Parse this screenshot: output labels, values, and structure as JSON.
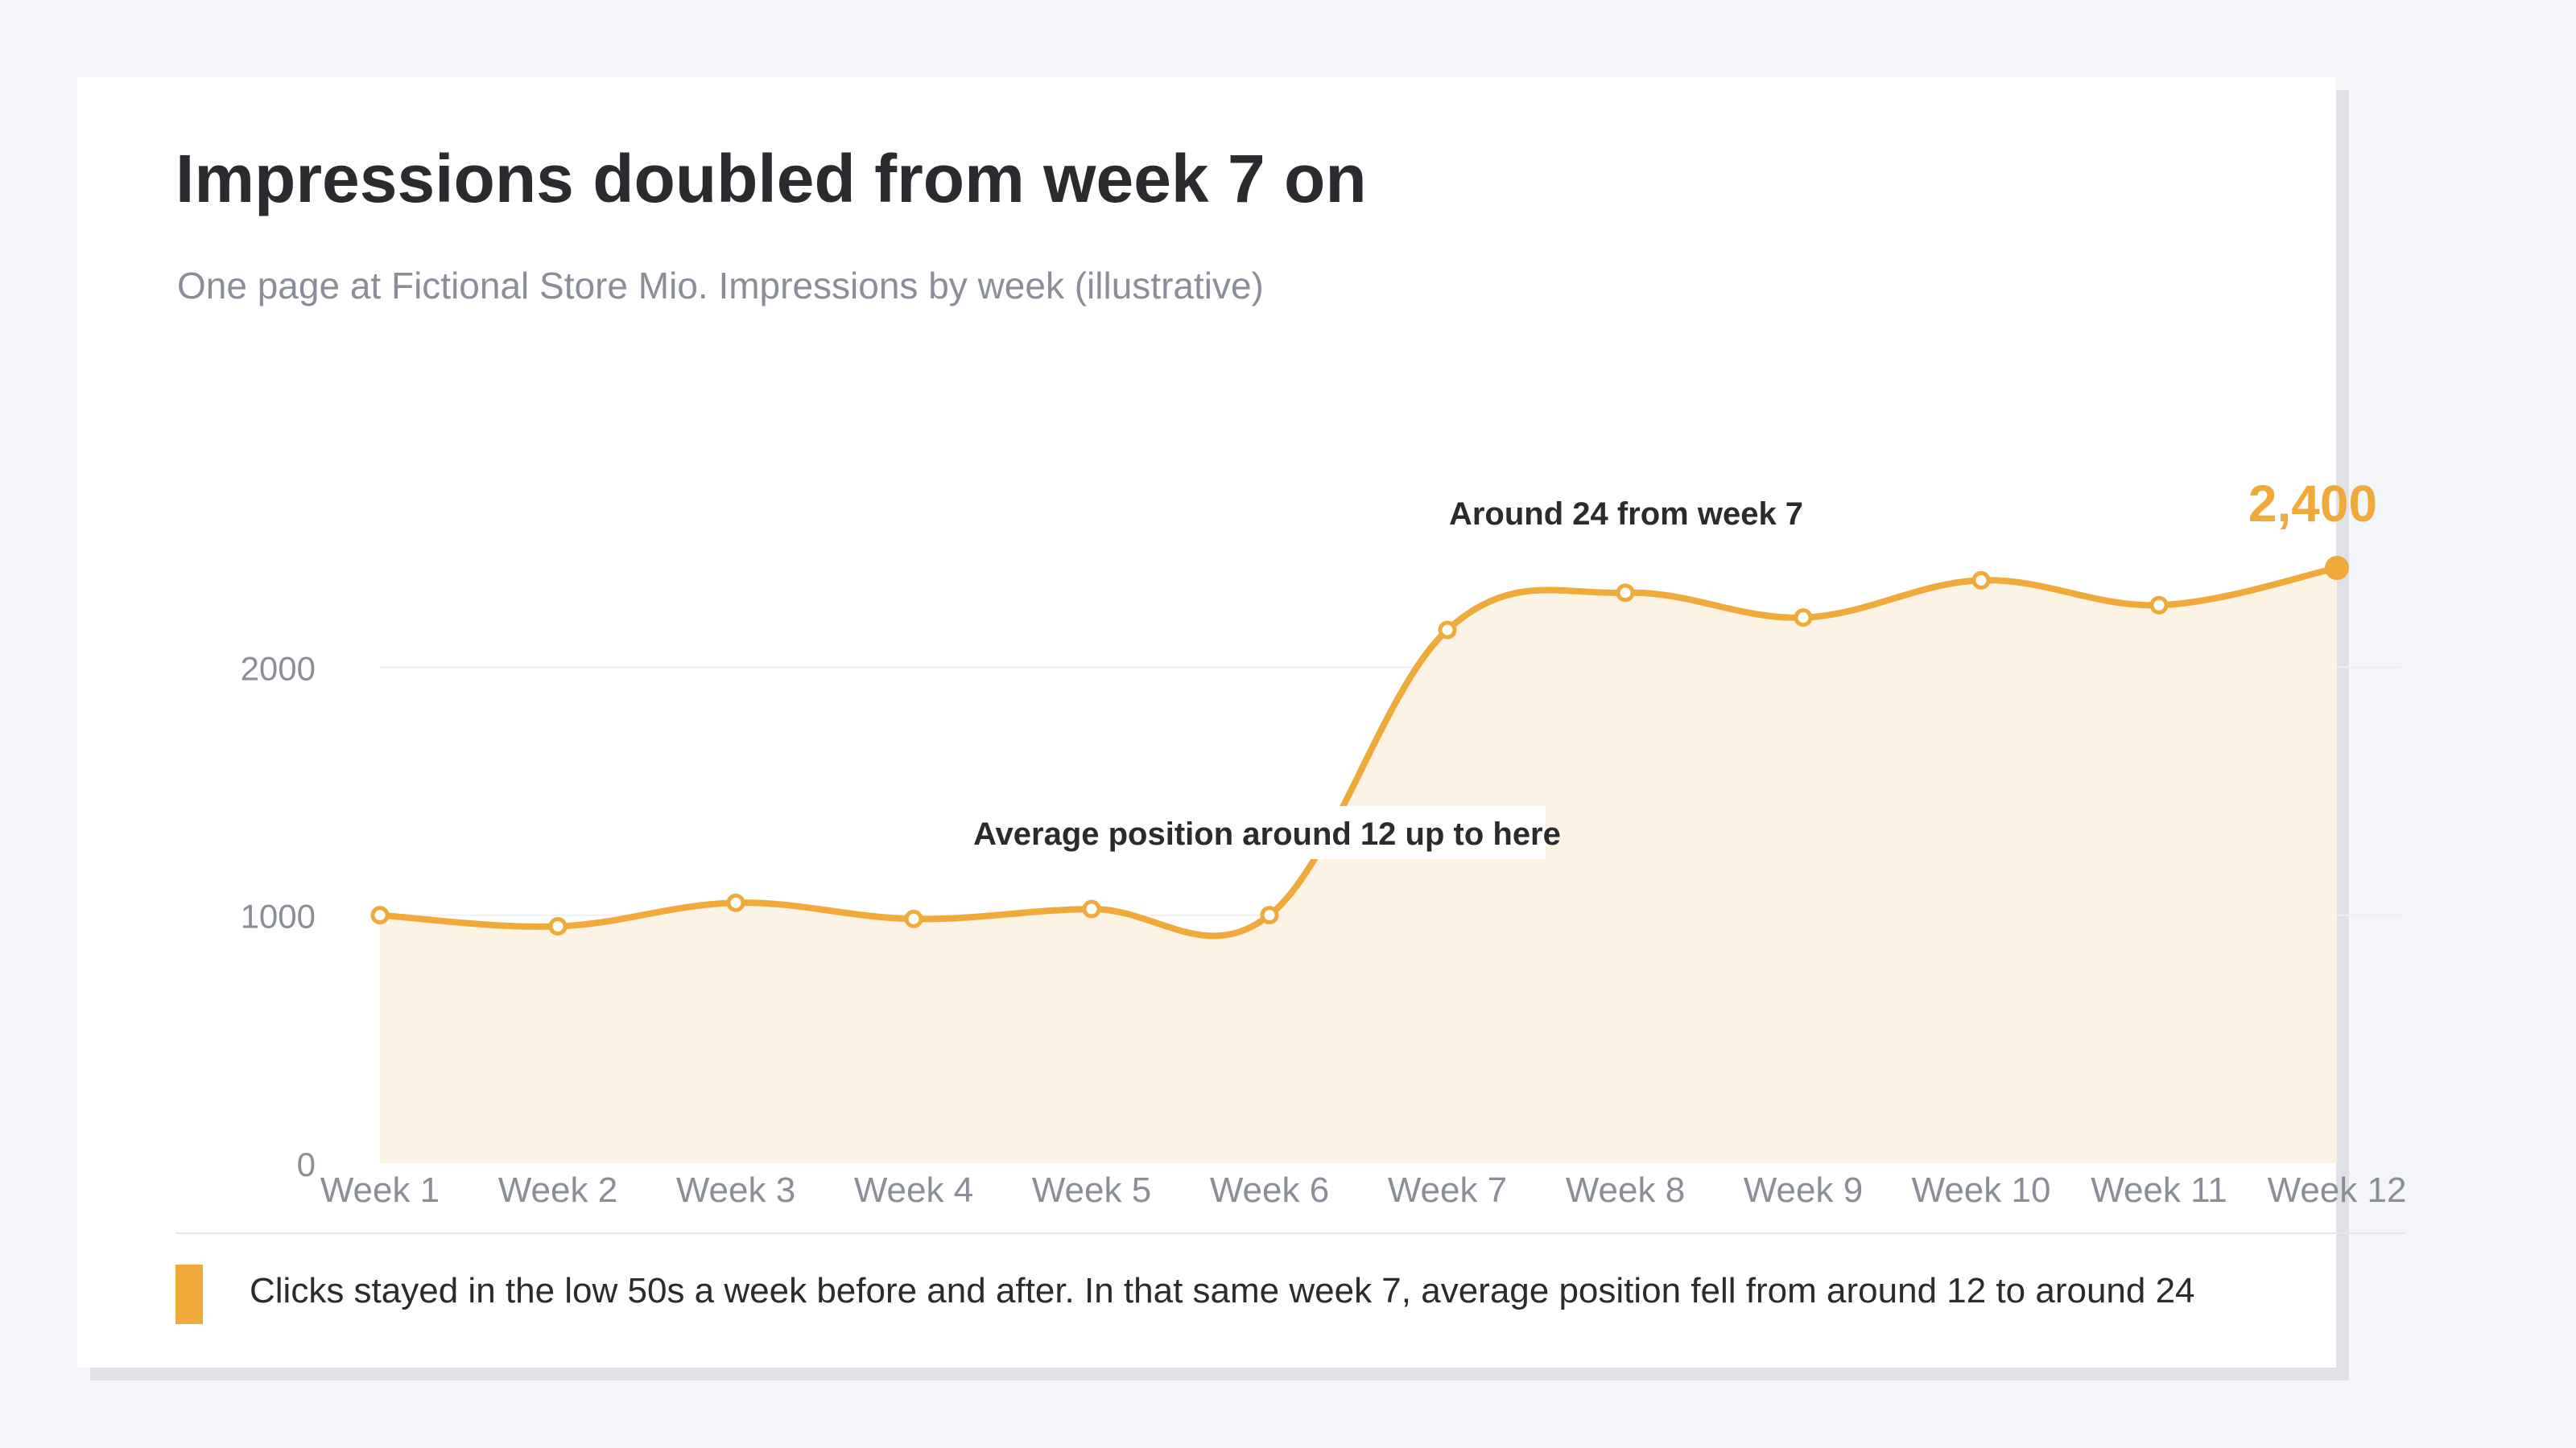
{
  "chart_data": {
    "type": "area",
    "title": "Impressions doubled from week 7 on",
    "subtitle": "One page at Fictional Store Mio. Impressions by week (illustrative)",
    "categories": [
      "Week 1",
      "Week 2",
      "Week 3",
      "Week 4",
      "Week 5",
      "Week 6",
      "Week 7",
      "Week 8",
      "Week 9",
      "Week 10",
      "Week 11",
      "Week 12"
    ],
    "values": [
      1000,
      955,
      1050,
      985,
      1025,
      1000,
      2150,
      2300,
      2200,
      2350,
      2250,
      2400
    ],
    "ylim": [
      0,
      2400
    ],
    "yticks": [
      0,
      1000,
      2000
    ],
    "grid": true,
    "line_color": "#f0a93b",
    "fill_color": "#fdf3e4",
    "last_value_label": "2,400",
    "annotations": [
      {
        "text": "Average position around 12 up to here",
        "x": "Week 6"
      },
      {
        "text": "Around 24 from week 7",
        "x": "Week 7"
      }
    ],
    "legend_text": "Clicks stayed in the low 50s a week before and after. In that same week 7, average position fell from around 12 to around 24"
  }
}
